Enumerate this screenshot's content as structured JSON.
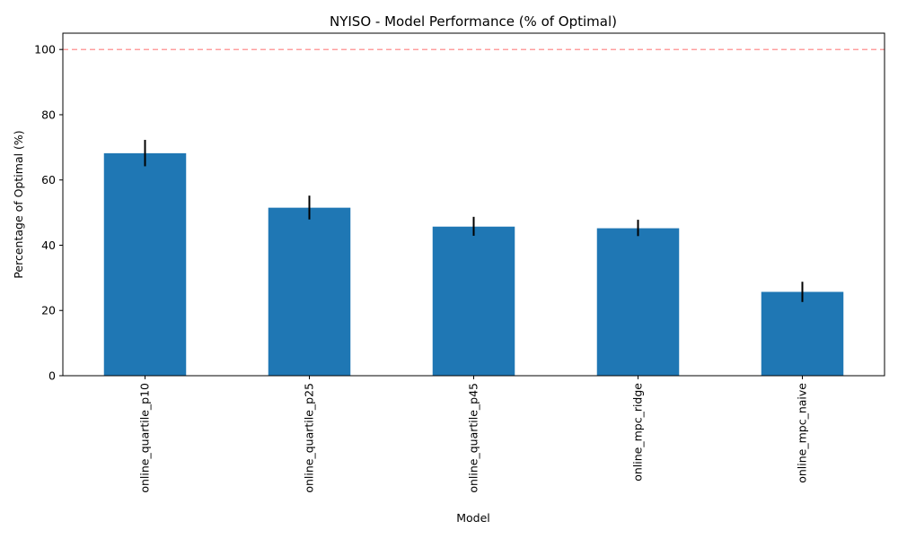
{
  "chart_data": {
    "type": "bar",
    "title": "NYISO - Model Performance (% of Optimal)",
    "xlabel": "Model",
    "ylabel": "Percentage of Optimal (%)",
    "categories": [
      "online_quartile_p10",
      "online_quartile_p25",
      "online_quartile_p45",
      "online_mpc_ridge",
      "online_mpc_naive"
    ],
    "values": [
      68.2,
      51.5,
      45.7,
      45.2,
      25.7
    ],
    "error_low": [
      64.2,
      47.9,
      42.9,
      42.8,
      22.6
    ],
    "error_high": [
      72.3,
      55.2,
      48.7,
      47.8,
      28.8
    ],
    "ylim": [
      0,
      105
    ],
    "yticks": [
      0,
      20,
      40,
      60,
      80,
      100
    ],
    "reference_line": {
      "y": 100,
      "style": "dashed",
      "color": "#ff9f9f"
    },
    "bar_color": "#1f77b4",
    "errorbar_color": "#000000",
    "grid": false,
    "legend": "none"
  }
}
